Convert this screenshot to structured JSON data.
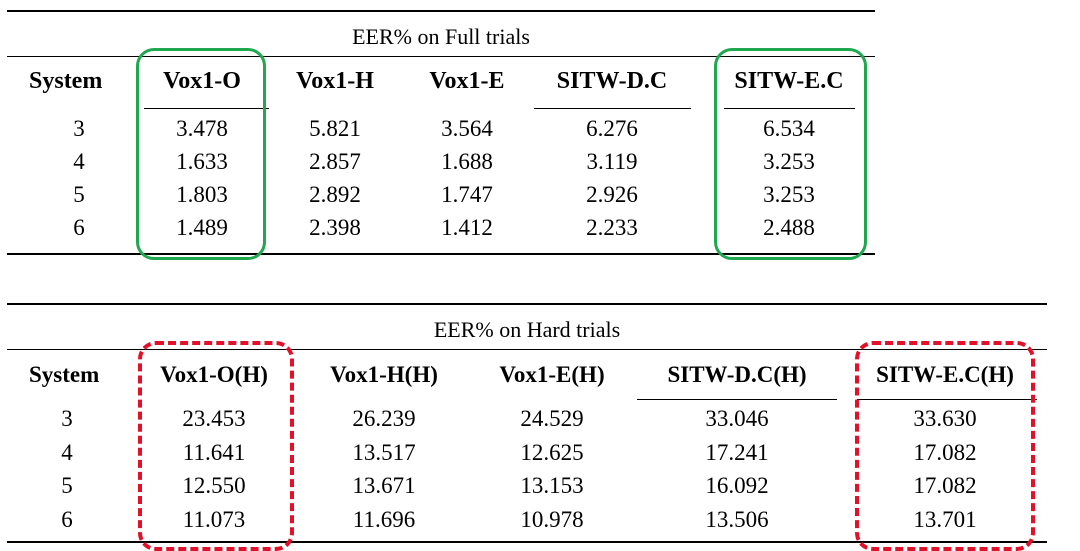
{
  "tables": [
    {
      "caption": "EER% on Full trials",
      "headers": [
        "System",
        "Vox1-O",
        "Vox1-H",
        "Vox1-E",
        "SITW-D.C",
        "SITW-E.C"
      ],
      "rows": [
        [
          "3",
          "3.478",
          "5.821",
          "3.564",
          "6.276",
          "6.534"
        ],
        [
          "4",
          "1.633",
          "2.857",
          "1.688",
          "3.119",
          "3.253"
        ],
        [
          "5",
          "1.803",
          "2.892",
          "1.747",
          "2.926",
          "3.253"
        ],
        [
          "6",
          "1.489",
          "2.398",
          "1.412",
          "2.233",
          "2.488"
        ]
      ],
      "highlight_columns": [
        "Vox1-O",
        "SITW-E.C"
      ],
      "highlight_color": "#1fa84f",
      "highlight_style": "solid"
    },
    {
      "caption": "EER% on Hard trials",
      "headers": [
        "System",
        "Vox1-O(H)",
        "Vox1-H(H)",
        "Vox1-E(H)",
        "SITW-D.C(H)",
        "SITW-E.C(H)"
      ],
      "rows": [
        [
          "3",
          "23.453",
          "26.239",
          "24.529",
          "33.046",
          "33.630"
        ],
        [
          "4",
          "11.641",
          "13.517",
          "12.625",
          "17.241",
          "17.082"
        ],
        [
          "5",
          "12.550",
          "13.671",
          "13.153",
          "16.092",
          "17.082"
        ],
        [
          "6",
          "11.073",
          "11.696",
          "10.978",
          "13.506",
          "13.701"
        ]
      ],
      "highlight_columns": [
        "Vox1-O(H)",
        "SITW-E.C(H)"
      ],
      "highlight_color": "#e3102a",
      "highlight_style": "dashed"
    }
  ]
}
